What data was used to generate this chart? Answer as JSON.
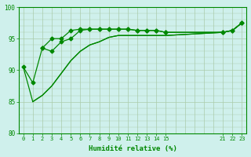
{
  "xlabel": "Humidité relative (%)",
  "bg_color": "#cff0ec",
  "line_color": "#008800",
  "grid_color": "#aaccaa",
  "ylim": [
    80,
    100
  ],
  "xlim": [
    -0.5,
    23.5
  ],
  "yticks": [
    80,
    85,
    90,
    95,
    100
  ],
  "xticks": [
    0,
    1,
    2,
    3,
    4,
    5,
    6,
    7,
    8,
    9,
    10,
    11,
    12,
    13,
    14,
    15,
    21,
    22,
    23
  ],
  "lines": [
    {
      "x": [
        0,
        1,
        2,
        3,
        4,
        5,
        6,
        7,
        8,
        9,
        10,
        11,
        12,
        13,
        14,
        15,
        21,
        22,
        23
      ],
      "y": [
        90.5,
        88.0,
        93.5,
        95.0,
        95.0,
        96.3,
        96.5,
        96.5,
        96.5,
        96.5,
        96.5,
        96.5,
        96.3,
        96.3,
        96.3,
        96.0,
        96.0,
        96.3,
        97.5
      ],
      "marker": "D",
      "markersize": 2.5,
      "has_marker": true
    },
    {
      "x": [
        2,
        3,
        4,
        5,
        6,
        7,
        8,
        9,
        10,
        11,
        12,
        13,
        14,
        15,
        21,
        22,
        23
      ],
      "y": [
        93.5,
        93.0,
        94.5,
        95.0,
        96.3,
        96.5,
        96.5,
        96.5,
        96.5,
        96.5,
        96.3,
        96.3,
        96.3,
        96.0,
        96.0,
        96.3,
        97.5
      ],
      "marker": "D",
      "markersize": 2.5,
      "has_marker": true
    },
    {
      "x": [
        0,
        1,
        2,
        3,
        4,
        5,
        6,
        7,
        8,
        9,
        10,
        11,
        12,
        13,
        14,
        15,
        21,
        22,
        23
      ],
      "y": [
        90.5,
        85.0,
        86.0,
        87.5,
        89.5,
        91.5,
        93.0,
        94.0,
        94.5,
        95.2,
        95.5,
        95.5,
        95.5,
        95.5,
        95.5,
        95.5,
        96.0,
        96.3,
        97.5
      ],
      "marker": null,
      "markersize": 0,
      "has_marker": false
    },
    {
      "x": [
        1,
        2,
        3,
        4,
        5,
        6,
        7,
        8,
        9,
        10,
        11,
        12,
        13,
        14,
        15,
        21,
        22,
        23
      ],
      "y": [
        85.0,
        86.0,
        87.5,
        89.5,
        91.5,
        93.0,
        94.0,
        94.5,
        95.2,
        95.5,
        95.5,
        95.5,
        95.5,
        95.5,
        95.5,
        96.0,
        96.3,
        97.5
      ],
      "marker": null,
      "markersize": 0,
      "has_marker": false
    }
  ]
}
